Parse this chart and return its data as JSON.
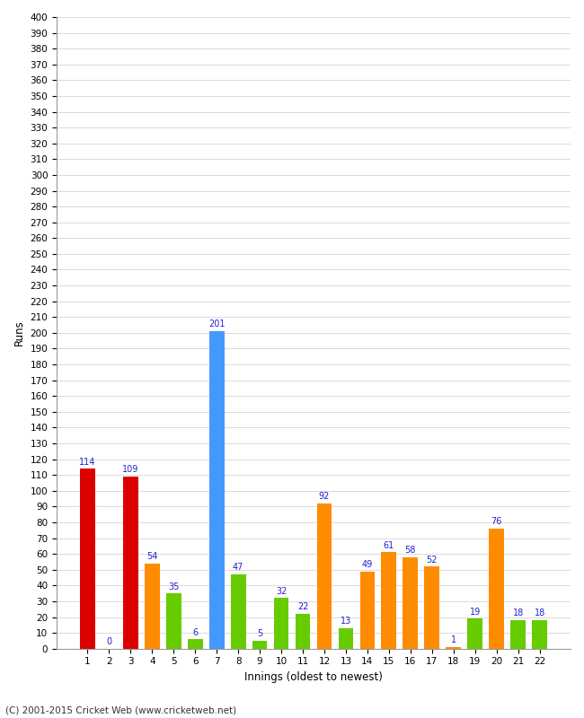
{
  "title": "",
  "xlabel": "Innings (oldest to newest)",
  "ylabel": "Runs",
  "categories": [
    1,
    2,
    3,
    4,
    5,
    6,
    7,
    8,
    9,
    10,
    11,
    12,
    13,
    14,
    15,
    16,
    17,
    18,
    19,
    20,
    21,
    22
  ],
  "values": [
    114,
    0,
    109,
    54,
    35,
    6,
    201,
    47,
    5,
    32,
    22,
    92,
    13,
    49,
    61,
    58,
    52,
    1,
    19,
    76,
    18,
    18
  ],
  "colors": [
    "#dd0000",
    "#dd0000",
    "#dd0000",
    "#ff8c00",
    "#66cc00",
    "#66cc00",
    "#4499ff",
    "#66cc00",
    "#66cc00",
    "#66cc00",
    "#66cc00",
    "#ff8c00",
    "#66cc00",
    "#ff8c00",
    "#ff8c00",
    "#ff8c00",
    "#ff8c00",
    "#ff8c00",
    "#66cc00",
    "#ff8c00",
    "#66cc00",
    "#66cc00"
  ],
  "ylim": [
    0,
    400
  ],
  "label_color": "#2222cc",
  "bg_color": "#ffffff",
  "grid_color": "#cccccc",
  "footer": "(C) 2001-2015 Cricket Web (www.cricketweb.net)"
}
